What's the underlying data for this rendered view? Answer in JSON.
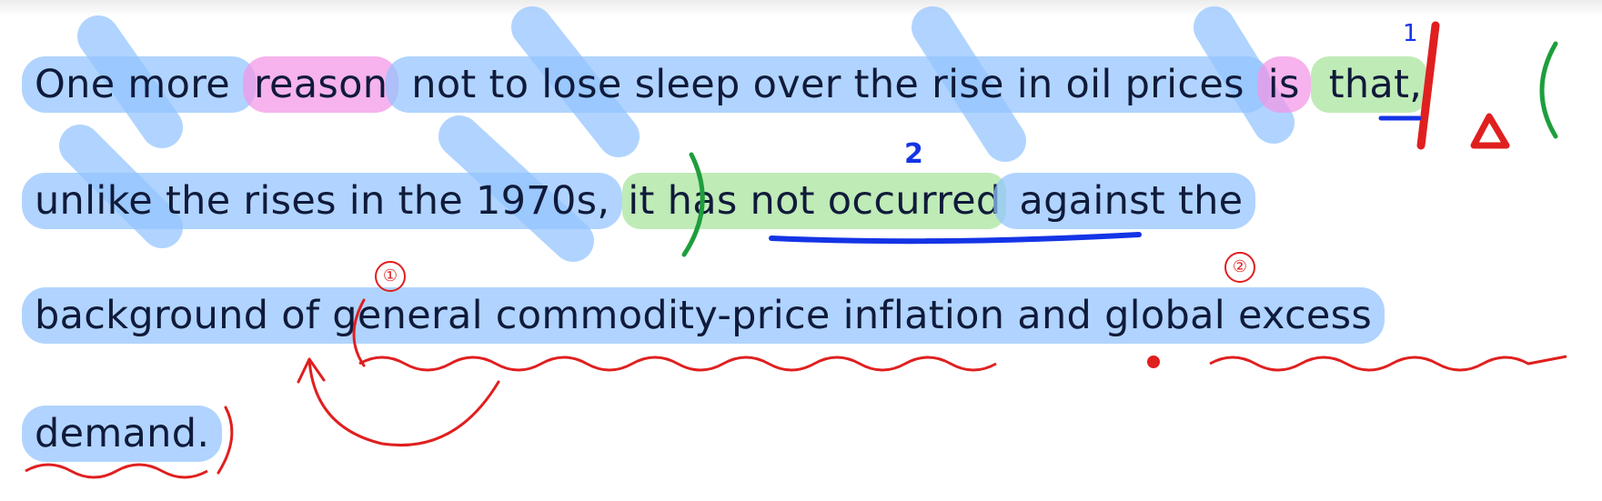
{
  "lines": [
    {
      "segments": [
        {
          "text": "One more ",
          "style": "blue"
        },
        {
          "text": "reason",
          "style": "pink"
        },
        {
          "text": " not to lose sleep over the rise in oil prices ",
          "style": "blue"
        },
        {
          "text": "is",
          "style": "pink"
        },
        {
          "text": " that,",
          "style": "green"
        }
      ]
    },
    {
      "segments": [
        {
          "text": "unlike the rises in the 1970s,",
          "style": "blue"
        },
        {
          "text": " ",
          "style": "none"
        },
        {
          "text": "it has not occurred",
          "style": "green"
        },
        {
          "text": " against the",
          "style": "blue"
        }
      ]
    },
    {
      "segments": [
        {
          "text": "background of general commodity-price inflation and global excess",
          "style": "blue"
        }
      ]
    },
    {
      "segments": [
        {
          "text": "demand.",
          "style": "blue"
        }
      ]
    }
  ],
  "annotations": {
    "mark_one": "1",
    "mark_two": "2",
    "circled_one": "①",
    "circled_two": "②"
  },
  "colors": {
    "highlight_blue": "#91c3ff",
    "highlight_pink": "#f296e6",
    "highlight_green": "#afe6a5",
    "ink_red": "#e01f1f",
    "ink_green": "#1e9e3c",
    "ink_blue": "#1434e6",
    "text": "#101a3a"
  }
}
